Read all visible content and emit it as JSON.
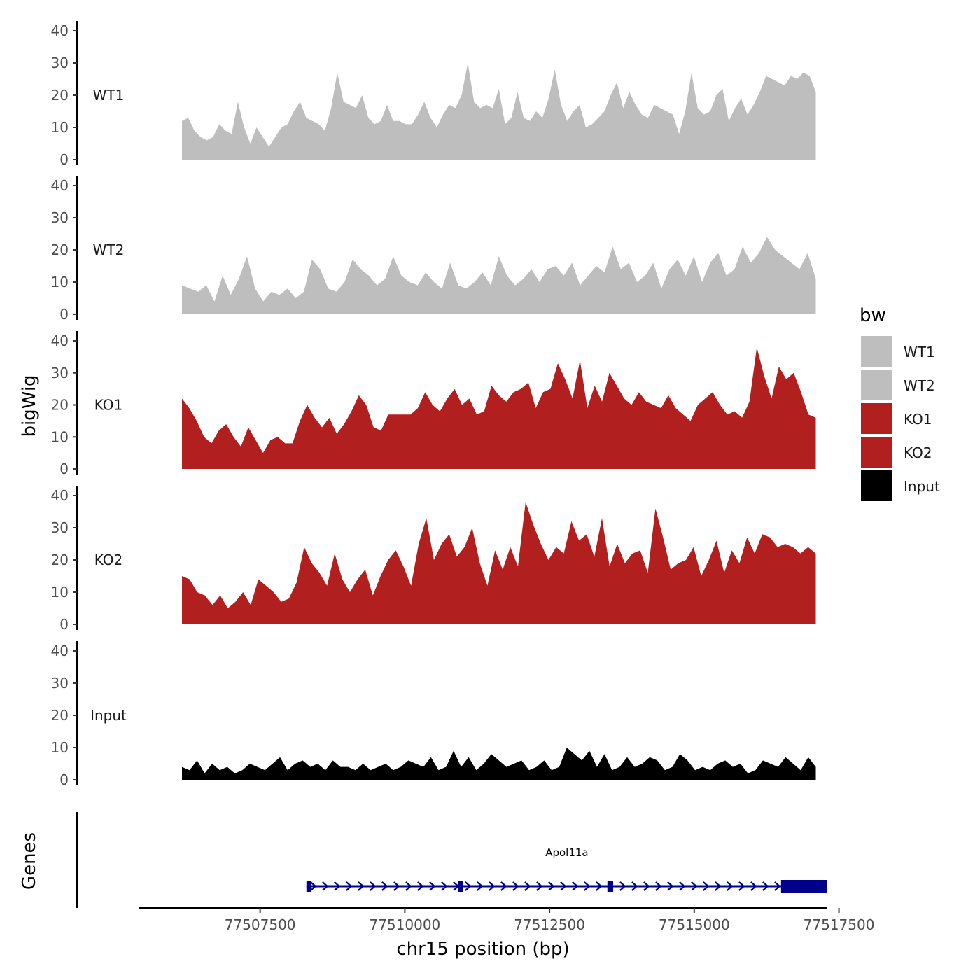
{
  "chart_data": {
    "type": "area",
    "title": "",
    "ylabel": "bigWig",
    "xlabel": "chr15 position (bp)",
    "genes_panel_label": "Genes",
    "xlim": [
      77505400,
      77517300
    ],
    "x_start": 77506150,
    "x_end": 77517100,
    "xticks": [
      77507500,
      77510000,
      77512500,
      77515000,
      77517500
    ],
    "xtick_labels": [
      "77507500",
      "77510000",
      "77512500",
      "77515000",
      "77517500"
    ],
    "ylim": [
      0,
      40
    ],
    "yticks": [
      0,
      10,
      20,
      30,
      40
    ],
    "ytick_labels": [
      "0",
      "10",
      "20",
      "30",
      "40"
    ],
    "legend": {
      "title": "bw",
      "entries": [
        {
          "label": "WT1",
          "color": "#bebebe"
        },
        {
          "label": "WT2",
          "color": "#bebebe"
        },
        {
          "label": "KO1",
          "color": "#b21f1f"
        },
        {
          "label": "KO2",
          "color": "#b21f1f"
        },
        {
          "label": "Input",
          "color": "#000000"
        }
      ]
    },
    "series": [
      {
        "name": "WT1",
        "color": "#bebebe",
        "values": [
          12,
          13,
          9,
          7,
          6,
          7,
          11,
          9,
          8,
          18,
          10,
          5,
          10,
          7,
          4,
          7,
          10,
          11,
          15,
          18,
          13,
          12,
          11,
          9,
          16,
          27,
          18,
          17,
          16,
          20,
          13,
          11,
          12,
          17,
          12,
          12,
          11,
          11,
          14,
          18,
          13,
          10,
          14,
          17,
          16,
          20,
          30,
          18,
          16,
          17,
          16,
          22,
          11,
          13,
          21,
          13,
          12,
          15,
          13,
          19,
          28,
          17,
          12,
          15,
          17,
          10,
          11,
          13,
          15,
          20,
          24,
          16,
          21,
          17,
          14,
          13,
          17,
          16,
          15,
          14,
          8,
          15,
          27,
          16,
          14,
          15,
          20,
          22,
          12,
          16,
          19,
          14,
          17,
          21,
          26,
          25,
          24,
          23,
          26,
          25,
          27,
          26,
          21
        ]
      },
      {
        "name": "WT2",
        "color": "#bebebe",
        "values": [
          9,
          8,
          7,
          9,
          4,
          12,
          6,
          11,
          18,
          8,
          4,
          7,
          6,
          8,
          5,
          7,
          17,
          14,
          8,
          7,
          10,
          17,
          14,
          12,
          9,
          11,
          18,
          12,
          10,
          9,
          13,
          10,
          8,
          16,
          9,
          8,
          10,
          13,
          9,
          18,
          12,
          9,
          11,
          14,
          10,
          14,
          15,
          12,
          16,
          9,
          12,
          15,
          13,
          21,
          14,
          16,
          10,
          12,
          16,
          8,
          14,
          17,
          12,
          18,
          10,
          16,
          19,
          12,
          14,
          21,
          16,
          19,
          24,
          20,
          18,
          16,
          14,
          19,
          11
        ]
      },
      {
        "name": "KO1",
        "color": "#b21f1f",
        "values": [
          22,
          19,
          15,
          10,
          8,
          12,
          14,
          10,
          7,
          13,
          9,
          5,
          9,
          10,
          8,
          8,
          15,
          20,
          16,
          13,
          16,
          11,
          14,
          18,
          23,
          20,
          13,
          12,
          17,
          17,
          17,
          17,
          19,
          24,
          20,
          18,
          22,
          25,
          20,
          22,
          17,
          18,
          26,
          23,
          21,
          24,
          25,
          27,
          19,
          24,
          25,
          33,
          28,
          22,
          34,
          19,
          26,
          21,
          30,
          26,
          22,
          20,
          24,
          21,
          20,
          19,
          23,
          19,
          17,
          15,
          20,
          22,
          24,
          20,
          17,
          18,
          16,
          21,
          38,
          29,
          22,
          32,
          28,
          30,
          24,
          17,
          16
        ]
      },
      {
        "name": "KO2",
        "color": "#b21f1f",
        "values": [
          15,
          14,
          10,
          9,
          6,
          9,
          5,
          7,
          10,
          6,
          14,
          12,
          10,
          7,
          8,
          13,
          24,
          19,
          16,
          12,
          22,
          14,
          10,
          14,
          17,
          9,
          15,
          20,
          23,
          18,
          12,
          25,
          33,
          20,
          25,
          28,
          21,
          24,
          30,
          19,
          12,
          23,
          17,
          24,
          18,
          38,
          31,
          25,
          20,
          24,
          22,
          32,
          26,
          28,
          21,
          33,
          18,
          25,
          19,
          22,
          23,
          16,
          36,
          27,
          17,
          19,
          20,
          24,
          15,
          20,
          26,
          16,
          23,
          19,
          27,
          22,
          28,
          27,
          24,
          25,
          24,
          22,
          24,
          22
        ]
      },
      {
        "name": "Input",
        "color": "#000000",
        "values": [
          4,
          3,
          6,
          2,
          5,
          3,
          4,
          2,
          3,
          5,
          4,
          3,
          5,
          7,
          3,
          5,
          6,
          4,
          5,
          3,
          6,
          4,
          4,
          3,
          5,
          3,
          4,
          5,
          3,
          4,
          6,
          5,
          4,
          7,
          3,
          4,
          9,
          4,
          7,
          3,
          5,
          8,
          6,
          4,
          5,
          6,
          3,
          4,
          6,
          3,
          4,
          10,
          8,
          6,
          9,
          4,
          8,
          3,
          4,
          7,
          4,
          5,
          7,
          6,
          3,
          4,
          8,
          6,
          3,
          4,
          3,
          5,
          6,
          4,
          5,
          2,
          3,
          6,
          5,
          4,
          7,
          5,
          3,
          7,
          4
        ]
      }
    ],
    "genes": [
      {
        "name": "Apol11a",
        "strand": "+",
        "start": 77508300,
        "end": 77517300,
        "color": "#00008b",
        "exons": [
          [
            77508300,
            77508380
          ],
          [
            77510920,
            77511000
          ],
          [
            77513500,
            77513600
          ],
          [
            77516500,
            77517300
          ]
        ]
      }
    ]
  }
}
